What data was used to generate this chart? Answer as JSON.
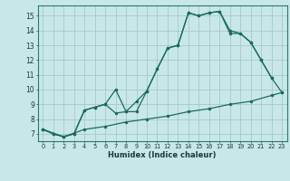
{
  "bg_color": "#c8e8e8",
  "grid_color": "#a8c8c8",
  "line_color": "#1a6b5a",
  "xlabel": "Humidex (Indice chaleur)",
  "xlim": [
    -0.5,
    23.5
  ],
  "ylim": [
    6.5,
    15.7
  ],
  "xticks": [
    0,
    1,
    2,
    3,
    4,
    5,
    6,
    7,
    8,
    9,
    10,
    11,
    12,
    13,
    14,
    15,
    16,
    17,
    18,
    19,
    20,
    21,
    22,
    23
  ],
  "yticks": [
    7,
    8,
    9,
    10,
    11,
    12,
    13,
    14,
    15
  ],
  "series": [
    {
      "x": [
        0,
        1,
        2,
        3,
        4,
        5,
        6,
        7,
        8,
        9,
        10,
        11,
        12,
        13,
        14,
        15,
        16,
        17,
        18,
        19,
        20,
        21,
        22
      ],
      "y": [
        7.3,
        7.0,
        6.8,
        7.0,
        8.6,
        8.8,
        9.0,
        8.4,
        8.5,
        9.2,
        9.9,
        11.4,
        12.8,
        13.0,
        15.2,
        15.0,
        15.2,
        15.3,
        14.0,
        13.8,
        13.2,
        12.0,
        10.8
      ]
    },
    {
      "x": [
        0,
        1,
        2,
        3,
        4,
        5,
        6,
        7,
        8,
        9,
        10,
        11,
        12,
        13,
        14,
        15,
        16,
        17,
        18,
        19,
        20,
        21,
        22,
        23
      ],
      "y": [
        7.3,
        7.0,
        6.8,
        7.0,
        8.6,
        8.8,
        9.0,
        10.0,
        8.5,
        8.5,
        9.9,
        11.4,
        12.8,
        13.0,
        15.2,
        15.0,
        15.2,
        15.3,
        13.8,
        13.8,
        13.2,
        12.0,
        10.8,
        9.8
      ]
    },
    {
      "x": [
        0,
        2,
        4,
        6,
        8,
        10,
        12,
        14,
        16,
        18,
        20,
        22,
        23
      ],
      "y": [
        7.3,
        6.8,
        7.3,
        7.5,
        7.8,
        8.0,
        8.2,
        8.5,
        8.7,
        9.0,
        9.2,
        9.6,
        9.8
      ]
    }
  ]
}
